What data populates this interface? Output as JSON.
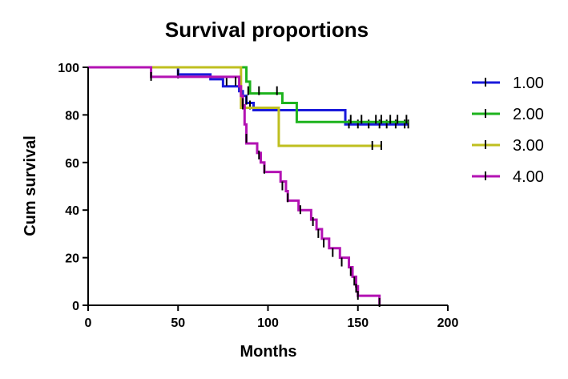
{
  "chart_data": {
    "type": "line",
    "title": "Survival proportions",
    "xlabel": "Months",
    "ylabel": "Cum survival",
    "xlim": [
      0,
      200
    ],
    "ylim": [
      0,
      100
    ],
    "xticks": [
      0,
      50,
      100,
      150,
      200
    ],
    "yticks": [
      0,
      20,
      40,
      60,
      80,
      100
    ],
    "grid": false,
    "legend": "right",
    "series": [
      {
        "name": "1.00",
        "color": "#1a1adb",
        "steps": [
          [
            0,
            100
          ],
          [
            50,
            97
          ],
          [
            68,
            95
          ],
          [
            75,
            92
          ],
          [
            84,
            90
          ],
          [
            86,
            88
          ],
          [
            88,
            85
          ],
          [
            92,
            82
          ],
          [
            143,
            76
          ],
          [
            178,
            76
          ]
        ],
        "censors": [
          [
            35,
            97
          ],
          [
            50,
            97
          ],
          [
            77,
            94
          ],
          [
            85,
            90
          ],
          [
            88,
            86
          ],
          [
            90,
            84
          ],
          [
            145,
            76
          ],
          [
            150,
            76
          ],
          [
            156,
            76
          ],
          [
            162,
            76
          ],
          [
            166,
            76
          ],
          [
            171,
            76
          ],
          [
            176,
            76
          ],
          [
            178,
            76
          ]
        ]
      },
      {
        "name": "2.00",
        "color": "#1db31d",
        "steps": [
          [
            0,
            100
          ],
          [
            87,
            100
          ],
          [
            88,
            94
          ],
          [
            90,
            89
          ],
          [
            108,
            85
          ],
          [
            116,
            77
          ],
          [
            178,
            77
          ]
        ],
        "censors": [
          [
            89,
            90
          ],
          [
            95,
            90
          ],
          [
            105,
            90
          ],
          [
            146,
            78
          ],
          [
            152,
            78
          ],
          [
            160,
            78
          ],
          [
            163,
            78
          ],
          [
            168,
            78
          ],
          [
            172,
            78
          ],
          [
            177,
            78
          ]
        ]
      },
      {
        "name": "3.00",
        "color": "#bfbf1f",
        "steps": [
          [
            0,
            100
          ],
          [
            83,
            100
          ],
          [
            85,
            83
          ],
          [
            105,
            83
          ],
          [
            106,
            67
          ],
          [
            163,
            67
          ]
        ],
        "censors": [
          [
            86,
            84
          ],
          [
            158,
            67
          ],
          [
            163,
            67
          ]
        ]
      },
      {
        "name": "4.00",
        "color": "#b312b3",
        "steps": [
          [
            0,
            100
          ],
          [
            35,
            96
          ],
          [
            82,
            96
          ],
          [
            84,
            92
          ],
          [
            85,
            88
          ],
          [
            86,
            84
          ],
          [
            87,
            76
          ],
          [
            88,
            68
          ],
          [
            94,
            64
          ],
          [
            96,
            60
          ],
          [
            98,
            56
          ],
          [
            107,
            52
          ],
          [
            110,
            48
          ],
          [
            111,
            44
          ],
          [
            117,
            40
          ],
          [
            124,
            36
          ],
          [
            127,
            32
          ],
          [
            130,
            28
          ],
          [
            134,
            24
          ],
          [
            140,
            20
          ],
          [
            145,
            16
          ],
          [
            147,
            12
          ],
          [
            149,
            8
          ],
          [
            150,
            4
          ],
          [
            161,
            4
          ],
          [
            162,
            0
          ]
        ],
        "censors": [
          [
            35,
            96
          ],
          [
            82,
            94
          ],
          [
            86,
            85
          ],
          [
            88,
            70
          ],
          [
            95,
            63
          ],
          [
            98,
            57
          ],
          [
            108,
            50
          ],
          [
            111,
            45
          ],
          [
            118,
            40
          ],
          [
            125,
            35
          ],
          [
            128,
            30
          ],
          [
            131,
            26
          ],
          [
            136,
            22
          ],
          [
            141,
            18
          ],
          [
            146,
            14
          ],
          [
            148,
            10
          ],
          [
            149,
            7
          ],
          [
            150,
            4
          ],
          [
            162,
            1
          ]
        ]
      }
    ]
  }
}
